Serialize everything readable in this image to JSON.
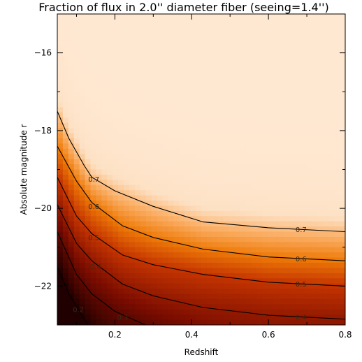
{
  "chart_data": {
    "type": "heatmap",
    "title": "Fraction of flux in 2.0'' diameter fiber (seeing=1.4'')",
    "xlabel": "Redshift",
    "ylabel": "Absolute magnitude r",
    "xlim": [
      0.05,
      0.8
    ],
    "ylim": [
      -15,
      -23
    ],
    "x_ticks": [
      0.2,
      0.4,
      0.6,
      0.8
    ],
    "x_tick_labels": [
      "0.2",
      "0.4",
      "0.6",
      "0.8"
    ],
    "y_ticks": [
      -16,
      -18,
      -20,
      -22
    ],
    "y_tick_labels": [
      "−16",
      "−18",
      "−20",
      "−22"
    ],
    "colormap": {
      "stops": [
        {
          "value": 0.2,
          "color": "#200000"
        },
        {
          "value": 0.35,
          "color": "#7a0c00"
        },
        {
          "value": 0.5,
          "color": "#c43400"
        },
        {
          "value": 0.6,
          "color": "#ee7a08"
        },
        {
          "value": 0.68,
          "color": "#fbb068"
        },
        {
          "value": 0.75,
          "color": "#fde1c4"
        },
        {
          "value": 0.85,
          "color": "#ffe8d2"
        }
      ]
    },
    "contours": [
      {
        "level": 0.7,
        "label": "0.7",
        "points": [
          [
            0.05,
            -17.5
          ],
          [
            0.08,
            -18.2
          ],
          [
            0.12,
            -18.9
          ],
          [
            0.14,
            -19.2
          ],
          [
            0.2,
            -19.55
          ],
          [
            0.3,
            -19.95
          ],
          [
            0.43,
            -20.35
          ],
          [
            0.6,
            -20.5
          ],
          [
            0.8,
            -20.6
          ]
        ]
      },
      {
        "level": 0.6,
        "label": "0.6",
        "points": [
          [
            0.05,
            -18.4
          ],
          [
            0.1,
            -19.3
          ],
          [
            0.14,
            -19.85
          ],
          [
            0.22,
            -20.45
          ],
          [
            0.3,
            -20.75
          ],
          [
            0.43,
            -21.05
          ],
          [
            0.6,
            -21.25
          ],
          [
            0.8,
            -21.35
          ]
        ]
      },
      {
        "level": 0.5,
        "label": "0.5",
        "points": [
          [
            0.05,
            -19.2
          ],
          [
            0.1,
            -20.2
          ],
          [
            0.14,
            -20.65
          ],
          [
            0.22,
            -21.2
          ],
          [
            0.3,
            -21.45
          ],
          [
            0.43,
            -21.7
          ],
          [
            0.6,
            -21.9
          ],
          [
            0.8,
            -22.0
          ]
        ]
      },
      {
        "level": 0.4,
        "label": "0.4",
        "points": [
          [
            0.05,
            -19.9
          ],
          [
            0.1,
            -20.9
          ],
          [
            0.14,
            -21.35
          ],
          [
            0.22,
            -21.95
          ],
          [
            0.3,
            -22.25
          ],
          [
            0.43,
            -22.55
          ],
          [
            0.6,
            -22.75
          ],
          [
            0.8,
            -22.85
          ]
        ]
      },
      {
        "level": 0.3,
        "label": "0.3",
        "points": [
          [
            0.05,
            -20.6
          ],
          [
            0.1,
            -21.7
          ],
          [
            0.14,
            -22.2
          ],
          [
            0.2,
            -22.65
          ],
          [
            0.28,
            -23.0
          ]
        ]
      },
      {
        "level": 0.2,
        "label": "0.2",
        "points": [
          [
            0.05,
            -21.5
          ],
          [
            0.08,
            -22.2
          ],
          [
            0.12,
            -22.85
          ],
          [
            0.13,
            -23.0
          ]
        ]
      }
    ],
    "contour_labels": [
      {
        "label": "0.7",
        "x": 0.145,
        "y": -19.25
      },
      {
        "label": "0.6",
        "x": 0.145,
        "y": -19.95
      },
      {
        "label": "0.5",
        "x": 0.145,
        "y": -20.75
      },
      {
        "label": "0.4",
        "x": 0.15,
        "y": -21.5
      },
      {
        "label": "0.3",
        "x": 0.22,
        "y": -22.8
      },
      {
        "label": "0.2",
        "x": 0.105,
        "y": -22.6
      },
      {
        "label": "0.7",
        "x": 0.685,
        "y": -20.55
      },
      {
        "label": "0.6",
        "x": 0.685,
        "y": -21.3
      },
      {
        "label": "0.5",
        "x": 0.685,
        "y": -21.95
      },
      {
        "label": "0.4",
        "x": 0.685,
        "y": -22.8
      }
    ],
    "grid": false,
    "legend": "none"
  }
}
